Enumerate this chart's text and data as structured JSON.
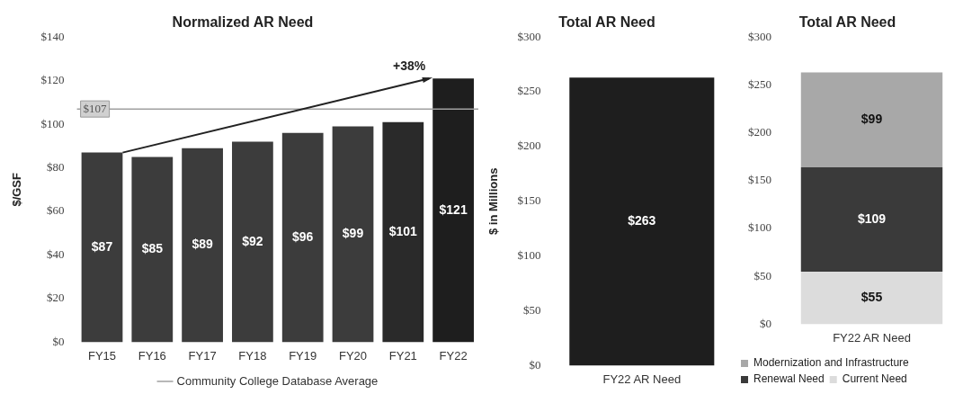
{
  "chart_data": [
    {
      "type": "bar",
      "title": "Normalized AR Need",
      "ylabel": "$/GSF",
      "categories": [
        "FY15",
        "FY16",
        "FY17",
        "FY18",
        "FY19",
        "FY20",
        "FY21",
        "FY22"
      ],
      "values": [
        87,
        85,
        89,
        92,
        96,
        99,
        101,
        121
      ],
      "value_labels": [
        "$87",
        "$85",
        "$89",
        "$92",
        "$96",
        "$99",
        "$101",
        "$121"
      ],
      "colors": [
        "#3c3c3c",
        "#3c3c3c",
        "#3c3c3c",
        "#3c3c3c",
        "#3c3c3c",
        "#3c3c3c",
        "#2a2a2a",
        "#1e1e1e"
      ],
      "ylim": [
        0,
        140
      ],
      "yticks": [
        {
          "value": 0,
          "label": "$0"
        },
        {
          "value": 20,
          "label": "$20"
        },
        {
          "value": 40,
          "label": "$40"
        },
        {
          "value": 60,
          "label": "$60"
        },
        {
          "value": 80,
          "label": "$80"
        },
        {
          "value": 100,
          "label": "$100"
        },
        {
          "value": 120,
          "label": "$120"
        },
        {
          "value": 140,
          "label": "$140"
        }
      ],
      "ref_lines": [
        {
          "axis": "y",
          "value": 107,
          "label": "Community College Database Average",
          "color": "#a0a0a0"
        }
      ],
      "annotations": [
        {
          "text": "$107",
          "y": 107
        },
        {
          "text": "+38%",
          "x": "FY22",
          "y": 121
        }
      ],
      "grid": false
    },
    {
      "type": "bar",
      "title": "Total AR Need",
      "ylabel": "$ in Millions",
      "categories": [
        "FY22 AR Need"
      ],
      "values": [
        263
      ],
      "value_labels": [
        "$263"
      ],
      "color": "#1e1e1e",
      "ylim": [
        0,
        300
      ],
      "yticks": [
        {
          "value": 0,
          "label": "$0"
        },
        {
          "value": 50,
          "label": "$50"
        },
        {
          "value": 100,
          "label": "$100"
        },
        {
          "value": 150,
          "label": "$150"
        },
        {
          "value": 200,
          "label": "$200"
        },
        {
          "value": 250,
          "label": "$250"
        },
        {
          "value": 300,
          "label": "$300"
        }
      ],
      "grid": false
    },
    {
      "type": "bar",
      "title": "Total AR Need",
      "stacked": true,
      "categories": [
        "FY22 AR Need"
      ],
      "series": [
        {
          "name": "Current Need",
          "color": "#dcdcdc",
          "values": [
            55
          ],
          "value_labels": [
            "$55"
          ]
        },
        {
          "name": "Renewal Need",
          "color": "#3a3a3a",
          "values": [
            109
          ],
          "value_labels": [
            "$109"
          ]
        },
        {
          "name": "Modernization and Infrastructure",
          "color": "#a8a8a8",
          "values": [
            99
          ],
          "value_labels": [
            "$99"
          ]
        }
      ],
      "ylim": [
        0,
        300
      ],
      "yticks": [
        {
          "value": 0,
          "label": "$0"
        },
        {
          "value": 50,
          "label": "$50"
        },
        {
          "value": 100,
          "label": "$100"
        },
        {
          "value": 150,
          "label": "$150"
        },
        {
          "value": 200,
          "label": "$200"
        },
        {
          "value": 250,
          "label": "$250"
        },
        {
          "value": 300,
          "label": "$300"
        }
      ],
      "legend": "bottom",
      "grid": false
    }
  ]
}
